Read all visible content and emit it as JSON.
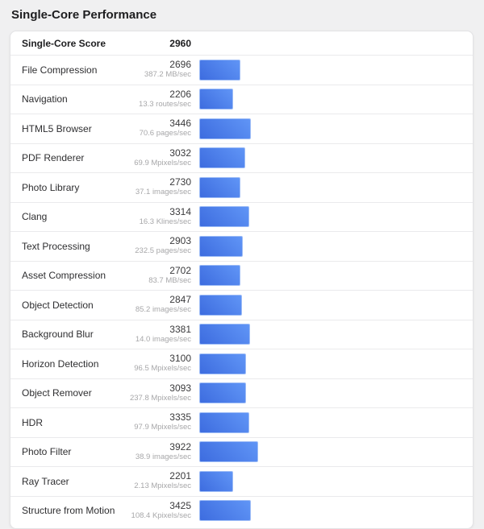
{
  "page": {
    "title": "Single-Core Performance"
  },
  "score_card": {
    "header": {
      "label": "Single-Core Score",
      "score": "2960"
    },
    "rows": [
      {
        "label": "File Compression",
        "score": 2696,
        "rate": "387.2 MB/sec"
      },
      {
        "label": "Navigation",
        "score": 2206,
        "rate": "13.3 routes/sec"
      },
      {
        "label": "HTML5 Browser",
        "score": 3446,
        "rate": "70.6 pages/sec"
      },
      {
        "label": "PDF Renderer",
        "score": 3032,
        "rate": "69.9 Mpixels/sec"
      },
      {
        "label": "Photo Library",
        "score": 2730,
        "rate": "37.1 images/sec"
      },
      {
        "label": "Clang",
        "score": 3314,
        "rate": "16.3 Klines/sec"
      },
      {
        "label": "Text Processing",
        "score": 2903,
        "rate": "232.5 pages/sec"
      },
      {
        "label": "Asset Compression",
        "score": 2702,
        "rate": "83.7 MB/sec"
      },
      {
        "label": "Object Detection",
        "score": 2847,
        "rate": "85.2 images/sec"
      },
      {
        "label": "Background Blur",
        "score": 3381,
        "rate": "14.0 images/sec"
      },
      {
        "label": "Horizon Detection",
        "score": 3100,
        "rate": "96.5 Mpixels/sec"
      },
      {
        "label": "Object Remover",
        "score": 3093,
        "rate": "237.8 Mpixels/sec"
      },
      {
        "label": "HDR",
        "score": 3335,
        "rate": "97.9 Mpixels/sec"
      },
      {
        "label": "Photo Filter",
        "score": 3922,
        "rate": "38.9 images/sec"
      },
      {
        "label": "Ray Tracer",
        "score": 2201,
        "rate": "2.13 Mpixels/sec"
      },
      {
        "label": "Structure from Motion",
        "score": 3425,
        "rate": "108.4 Kpixels/sec"
      }
    ]
  },
  "colors": {
    "page_background": "#f0f0f1",
    "card_background": "#ffffff",
    "card_border": "#e3e3e5",
    "row_separator": "#eaeaec",
    "bar_gradient_start": "#3d6cdf",
    "bar_gradient_end": "#6095f6",
    "bar_border": "#9dbcf6",
    "title_text": "#1d1d1f",
    "label_text": "#2e2e30",
    "rate_text": "#a7a7a9"
  },
  "chart_data": {
    "type": "bar",
    "title": "Single-Core Performance",
    "overall_score": 2960,
    "categories": [
      "File Compression",
      "Navigation",
      "HTML5 Browser",
      "PDF Renderer",
      "Photo Library",
      "Clang",
      "Text Processing",
      "Asset Compression",
      "Object Detection",
      "Background Blur",
      "Horizon Detection",
      "Object Remover",
      "HDR",
      "Photo Filter",
      "Ray Tracer",
      "Structure from Motion"
    ],
    "values": [
      2696,
      2206,
      3446,
      3032,
      2730,
      3314,
      2903,
      2702,
      2847,
      3381,
      3100,
      3093,
      3335,
      3922,
      2201,
      3425
    ],
    "rate_labels": [
      "387.2 MB/sec",
      "13.3 routes/sec",
      "70.6 pages/sec",
      "69.9 Mpixels/sec",
      "37.1 images/sec",
      "16.3 Klines/sec",
      "232.5 pages/sec",
      "83.7 MB/sec",
      "85.2 images/sec",
      "14.0 images/sec",
      "96.5 Mpixels/sec",
      "237.8 Mpixels/sec",
      "97.9 Mpixels/sec",
      "38.9 images/sec",
      "2.13 Mpixels/sec",
      "108.4 Kpixels/sec"
    ],
    "orientation": "horizontal",
    "xlabel": "",
    "ylabel": "",
    "grid": false,
    "legend": false
  }
}
